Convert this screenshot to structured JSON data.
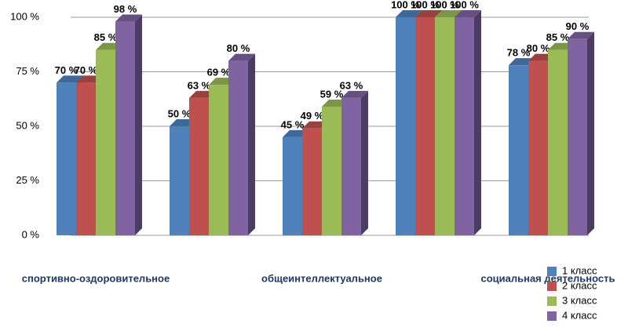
{
  "chart_data": {
    "type": "bar3d",
    "categories": [
      "спортивно-оздоровительное",
      null,
      "общеинтеллектуальное",
      null,
      "социальная деятельность"
    ],
    "series": [
      {
        "name": "1 класс",
        "color": "#4f81bd",
        "values": [
          70,
          50,
          45,
          100,
          78
        ],
        "value_labels": [
          "70 %",
          "50 %",
          "45 %",
          "100 %",
          "78 %"
        ]
      },
      {
        "name": "2 класс",
        "color": "#c0504d",
        "values": [
          70,
          63,
          49,
          100,
          80
        ],
        "value_labels": [
          "70 %",
          "63 %",
          "49 %",
          "100 %",
          "80 %"
        ]
      },
      {
        "name": "3 класс",
        "color": "#9bbb59",
        "values": [
          85,
          69,
          59,
          100,
          85
        ],
        "value_labels": [
          "85 %",
          "69 %",
          "59 %",
          "100 %",
          "85 %"
        ]
      },
      {
        "name": "4 класс",
        "color": "#8064a2",
        "values": [
          98,
          80,
          63,
          100,
          90
        ],
        "value_labels": [
          "98 %",
          "80 %",
          "63 %",
          "100 %",
          "90 %"
        ]
      }
    ],
    "ylim": [
      0,
      100
    ],
    "yticks": [
      {
        "value": 0,
        "label": "0 %"
      },
      {
        "value": 25,
        "label": "25 %"
      },
      {
        "value": 50,
        "label": "50 %"
      },
      {
        "value": 75,
        "label": "75 %"
      },
      {
        "value": 100,
        "label": "100 %"
      }
    ],
    "grid": true,
    "legend": "bottom-right"
  }
}
